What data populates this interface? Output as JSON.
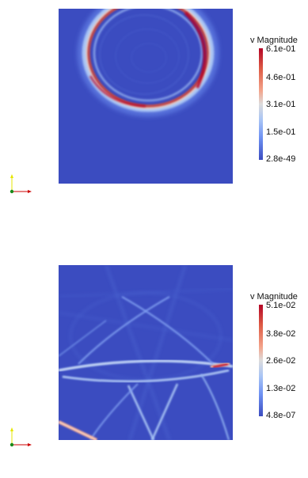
{
  "top_panel": {
    "legend_title": "v Magnitude",
    "ticks": [
      "6.1e-01",
      "4.6e-01",
      "3.1e-01",
      "1.5e-01",
      "2.8e-49"
    ]
  },
  "bottom_panel": {
    "legend_title": "v Magnitude",
    "ticks": [
      "5.1e-02",
      "3.8e-02",
      "2.6e-02",
      "1.3e-02",
      "4.8e-07"
    ]
  },
  "colors": {
    "background_field": "#3b4cc0",
    "high": "#b40426",
    "mid": "#dddcdc",
    "low": "#3b4cc0",
    "axis_x": "#cc0000",
    "axis_y": "#e6e600",
    "axis_origin": "#1a8a1a"
  },
  "icons": [
    "orientation-axes-icon"
  ]
}
